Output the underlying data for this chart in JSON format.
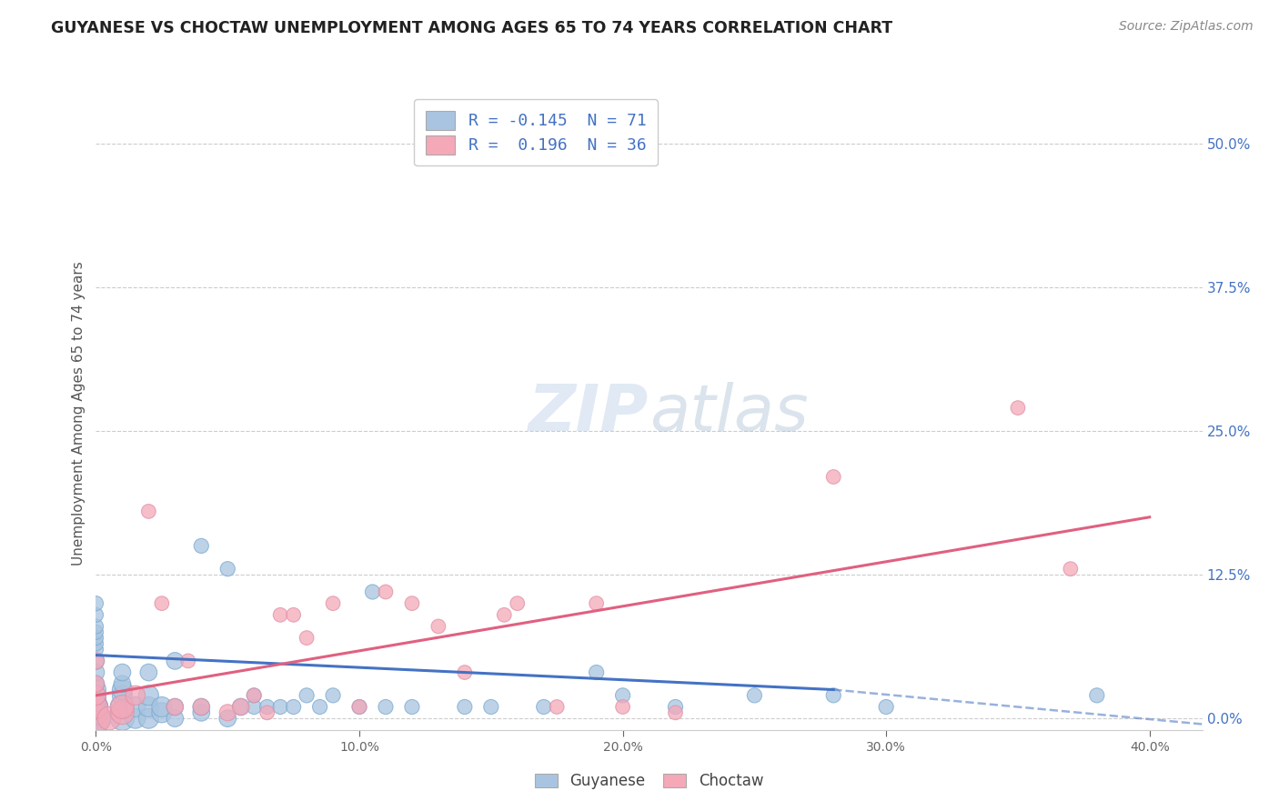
{
  "title": "GUYANESE VS CHOCTAW UNEMPLOYMENT AMONG AGES 65 TO 74 YEARS CORRELATION CHART",
  "source": "Source: ZipAtlas.com",
  "ylabel_label": "Unemployment Among Ages 65 to 74 years",
  "xlim": [
    0.0,
    0.42
  ],
  "ylim": [
    -0.01,
    0.54
  ],
  "x_ticks": [
    0.0,
    0.1,
    0.2,
    0.3,
    0.4
  ],
  "x_tick_labels": [
    "0.0%",
    "10.0%",
    "20.0%",
    "30.0%",
    "40.0%"
  ],
  "y_ticks": [
    0.0,
    0.125,
    0.25,
    0.375,
    0.5
  ],
  "y_tick_labels_right": [
    "0.0%",
    "12.5%",
    "25.0%",
    "37.5%",
    "50.0%"
  ],
  "guyanese_color": "#a8c4e0",
  "choctaw_color": "#f4a8b8",
  "guyanese_line_color": "#4472c4",
  "choctaw_line_color": "#e06080",
  "guyanese_R": -0.145,
  "guyanese_N": 71,
  "choctaw_R": 0.196,
  "choctaw_N": 36,
  "background_color": "#ffffff",
  "grid_color": "#cccccc",
  "guyanese_scatter_x": [
    0.0,
    0.0,
    0.0,
    0.0,
    0.0,
    0.0,
    0.0,
    0.0,
    0.0,
    0.0,
    0.0,
    0.0,
    0.0,
    0.0,
    0.0,
    0.0,
    0.0,
    0.0,
    0.0,
    0.0,
    0.0,
    0.0,
    0.0,
    0.0,
    0.0,
    0.0,
    0.01,
    0.01,
    0.01,
    0.01,
    0.01,
    0.01,
    0.015,
    0.015,
    0.02,
    0.02,
    0.02,
    0.02,
    0.025,
    0.025,
    0.03,
    0.03,
    0.03,
    0.04,
    0.04,
    0.04,
    0.05,
    0.05,
    0.055,
    0.06,
    0.06,
    0.065,
    0.07,
    0.075,
    0.08,
    0.085,
    0.09,
    0.1,
    0.105,
    0.11,
    0.12,
    0.14,
    0.15,
    0.17,
    0.19,
    0.2,
    0.22,
    0.25,
    0.28,
    0.3,
    0.38
  ],
  "guyanese_scatter_y": [
    0.0,
    0.0,
    0.0,
    0.0,
    0.0,
    0.0,
    0.0,
    0.0,
    0.005,
    0.005,
    0.01,
    0.01,
    0.015,
    0.015,
    0.02,
    0.025,
    0.03,
    0.04,
    0.05,
    0.06,
    0.065,
    0.07,
    0.075,
    0.08,
    0.09,
    0.1,
    0.0,
    0.01,
    0.02,
    0.025,
    0.03,
    0.04,
    0.0,
    0.01,
    0.0,
    0.01,
    0.02,
    0.04,
    0.005,
    0.01,
    0.0,
    0.01,
    0.05,
    0.005,
    0.01,
    0.15,
    0.0,
    0.13,
    0.01,
    0.01,
    0.02,
    0.01,
    0.01,
    0.01,
    0.02,
    0.01,
    0.02,
    0.01,
    0.11,
    0.01,
    0.01,
    0.01,
    0.01,
    0.01,
    0.04,
    0.02,
    0.01,
    0.02,
    0.02,
    0.01,
    0.02
  ],
  "choctaw_scatter_x": [
    0.0,
    0.0,
    0.0,
    0.0,
    0.0,
    0.005,
    0.01,
    0.01,
    0.015,
    0.02,
    0.025,
    0.03,
    0.035,
    0.04,
    0.05,
    0.055,
    0.06,
    0.065,
    0.07,
    0.075,
    0.08,
    0.09,
    0.1,
    0.11,
    0.12,
    0.13,
    0.14,
    0.155,
    0.16,
    0.175,
    0.19,
    0.2,
    0.22,
    0.28,
    0.35,
    0.37
  ],
  "choctaw_scatter_y": [
    0.0,
    0.01,
    0.02,
    0.03,
    0.05,
    0.0,
    0.005,
    0.01,
    0.02,
    0.18,
    0.1,
    0.01,
    0.05,
    0.01,
    0.005,
    0.01,
    0.02,
    0.005,
    0.09,
    0.09,
    0.07,
    0.1,
    0.01,
    0.11,
    0.1,
    0.08,
    0.04,
    0.09,
    0.1,
    0.01,
    0.1,
    0.01,
    0.005,
    0.21,
    0.27,
    0.13
  ],
  "guyanese_line_x0": 0.0,
  "guyanese_line_x_solid_end": 0.28,
  "guyanese_line_x_dashed_end": 0.42,
  "guyanese_line_y0": 0.055,
  "guyanese_line_y_solid_end": 0.025,
  "guyanese_line_y_dashed_end": -0.005,
  "choctaw_line_x0": 0.0,
  "choctaw_line_x_end": 0.4,
  "choctaw_line_y0": 0.02,
  "choctaw_line_y_end": 0.175
}
